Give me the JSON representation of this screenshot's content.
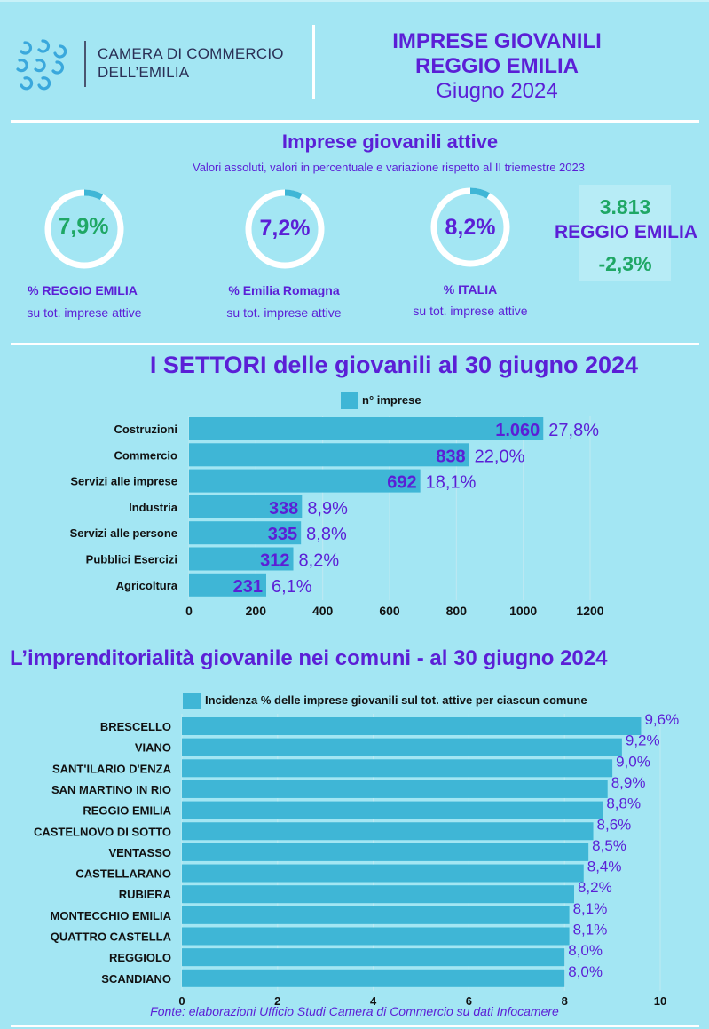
{
  "header": {
    "org_line1": "CAMERA DI COMMERCIO",
    "org_line2": "DELL’EMILIA",
    "title_line1": "IMPRESE GIOVANILI",
    "title_line2": "REGGIO EMILIA",
    "date": "Giugno 2024"
  },
  "kpi_section": {
    "title": "Imprese giovanili attive",
    "subtitle": "Valori assoluti, valori in percentuale e variazione rispetto al II triemestre 2023",
    "kpis": [
      {
        "value": "7,9%",
        "fraction": 0.079,
        "label": "%  REGGIO EMILIA",
        "sub": "su tot. imprese attive",
        "color": "#1fa765"
      },
      {
        "value": "7,2%",
        "fraction": 0.072,
        "label": "%  Emilia Romagna",
        "sub": "su tot. imprese attive",
        "color": "#5b1fd6"
      },
      {
        "value": "8,2%",
        "fraction": 0.082,
        "label": "%  ITALIA",
        "sub": "su tot. imprese attive",
        "color": "#5b1fd6"
      }
    ],
    "box": {
      "count": "3.813",
      "place": "REGGIO EMILIA",
      "change": "-2,3%"
    }
  },
  "colors": {
    "accent": "#5b1fd6",
    "bar": "#3fb6d6",
    "green": "#1fa765"
  },
  "chart_data": [
    {
      "type": "bar",
      "orientation": "horizontal",
      "title": "I SETTORI  delle giovanili  al 30 giugno 2024",
      "legend": "n° imprese",
      "categories": [
        "Costruzioni",
        "Commercio",
        "Servizi alle imprese",
        "Industria",
        "Servizi alle persone",
        "Pubblici Esercizi",
        "Agricoltura"
      ],
      "values": [
        1060,
        838,
        692,
        338,
        335,
        312,
        231
      ],
      "value_labels": [
        "1.060",
        "838",
        "692",
        "338",
        "335",
        "312",
        "231"
      ],
      "percent_labels": [
        "27,8%",
        "22,0%",
        "18,1%",
        "8,9%",
        "8,8%",
        "8,2%",
        "6,1%"
      ],
      "xlim": [
        0,
        1200
      ],
      "xticks": [
        "0",
        "200",
        "400",
        "600",
        "800",
        "1000",
        "1200"
      ]
    },
    {
      "type": "bar",
      "orientation": "horizontal",
      "title": "L’imprenditorialità giovanile nei comuni  - al 30 giugno 2024",
      "legend": "Incidenza % delle imprese giovanili sul tot. attive per ciascun comune",
      "categories": [
        "BRESCELLO",
        "VIANO",
        "SANT'ILARIO D'ENZA",
        "SAN MARTINO IN RIO",
        "REGGIO EMILIA",
        "CASTELNOVO DI SOTTO",
        "VENTASSO",
        "CASTELLARANO",
        "RUBIERA",
        "MONTECCHIO EMILIA",
        "QUATTRO CASTELLA",
        "REGGIOLO",
        "SCANDIANO"
      ],
      "values": [
        9.6,
        9.2,
        9.0,
        8.9,
        8.8,
        8.6,
        8.5,
        8.4,
        8.2,
        8.1,
        8.1,
        8.0,
        8.0
      ],
      "value_labels": [
        "9,6%",
        "9,2%",
        "9,0%",
        "8,9%",
        "8,8%",
        "8,6%",
        "8,5%",
        "8,4%",
        "8,2%",
        "8,1%",
        "8,1%",
        "8,0%",
        "8,0%"
      ],
      "xlim": [
        0,
        10
      ],
      "xticks": [
        "0",
        "2",
        "4",
        "6",
        "8",
        "10"
      ]
    }
  ],
  "footer": "Fonte: elaborazioni Ufficio Studi Camera di Commercio su dati Infocamere"
}
